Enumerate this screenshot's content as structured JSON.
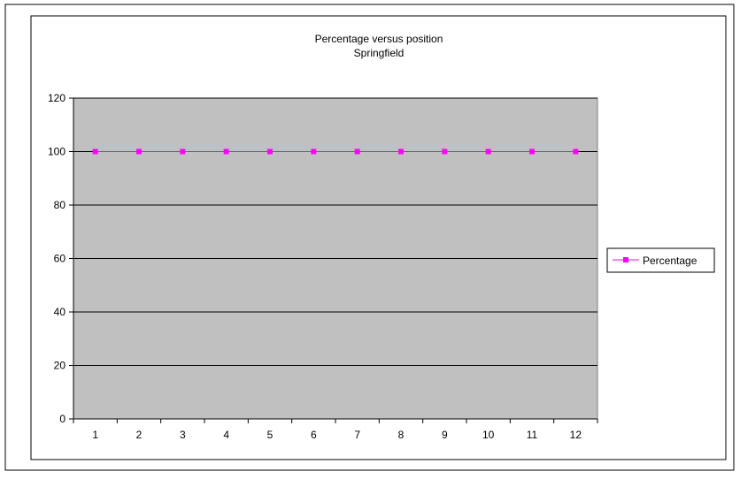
{
  "chart_data": {
    "type": "line",
    "title": "Percentage versus position",
    "subtitle": "Springfield",
    "xlabel": "",
    "ylabel": "",
    "categories": [
      "1",
      "2",
      "3",
      "4",
      "5",
      "6",
      "7",
      "8",
      "9",
      "10",
      "11",
      "12"
    ],
    "ylim": [
      0,
      120
    ],
    "yticks": [
      0,
      20,
      40,
      60,
      80,
      100,
      120
    ],
    "grid": true,
    "legend_position": "right",
    "plot_background": "#c0c0c0",
    "series": [
      {
        "name": "Percentage",
        "color": "#ff00ff",
        "marker": "square",
        "values": [
          100,
          100,
          100,
          100,
          100,
          100,
          100,
          100,
          100,
          100,
          100,
          100
        ]
      }
    ]
  }
}
